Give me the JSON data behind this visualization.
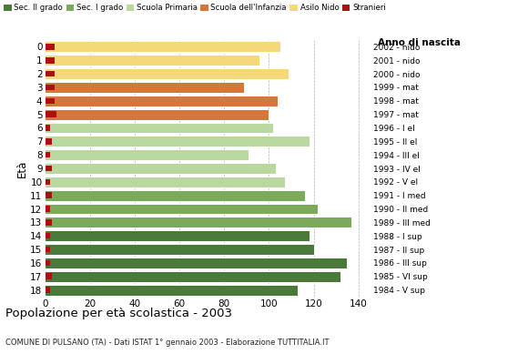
{
  "ages": [
    0,
    1,
    2,
    3,
    4,
    5,
    6,
    7,
    8,
    9,
    10,
    11,
    12,
    13,
    14,
    15,
    16,
    17,
    18
  ],
  "years": [
    "2002 - nido",
    "2001 - nido",
    "2000 - nido",
    "1999 - mat",
    "1998 - mat",
    "1997 - mat",
    "1996 - I el",
    "1995 - II el",
    "1994 - III el",
    "1993 - IV el",
    "1992 - V el",
    "1991 - I med",
    "1990 - II med",
    "1989 - III med",
    "1988 - I sup",
    "1987 - II sup",
    "1986 - III sup",
    "1985 - VI sup",
    "1984 - V sup"
  ],
  "values": [
    105,
    96,
    109,
    89,
    104,
    100,
    102,
    118,
    91,
    103,
    107,
    116,
    122,
    137,
    118,
    120,
    135,
    132,
    113
  ],
  "stranieri": [
    4,
    4,
    4,
    4,
    4,
    5,
    2,
    3,
    2,
    3,
    2,
    3,
    2,
    3,
    2,
    2,
    2,
    3,
    2
  ],
  "bar_colors": [
    "#f5d87a",
    "#f5d87a",
    "#f5d87a",
    "#d4773a",
    "#d4773a",
    "#d4773a",
    "#b8d8a0",
    "#b8d8a0",
    "#b8d8a0",
    "#b8d8a0",
    "#b8d8a0",
    "#7aaa5a",
    "#7aaa5a",
    "#7aaa5a",
    "#4a7a3a",
    "#4a7a3a",
    "#4a7a3a",
    "#4a7a3a",
    "#4a7a3a"
  ],
  "legend_labels": [
    "Sec. II grado",
    "Sec. I grado",
    "Scuola Primaria",
    "Scuola dell'Infanzia",
    "Asilo Nido",
    "Stranieri"
  ],
  "legend_colors_list": [
    "#4a7a3a",
    "#7aaa5a",
    "#b8d8a0",
    "#d4773a",
    "#f5d87a",
    "#aa1111"
  ],
  "stranieri_color": "#aa1111",
  "grid_color": "#b0b0b0",
  "bg_color": "#ffffff",
  "title": "Popolazione per età scolastica - 2003",
  "subtitle": "COMUNE DI PULSANO (TA) - Dati ISTAT 1° gennaio 2003 - Elaborazione TUTTITALIA.IT",
  "ylabel": "Età",
  "right_label": "Anno di nascita",
  "xlim": [
    0,
    145
  ],
  "xticks": [
    0,
    20,
    40,
    60,
    80,
    100,
    120,
    140
  ]
}
